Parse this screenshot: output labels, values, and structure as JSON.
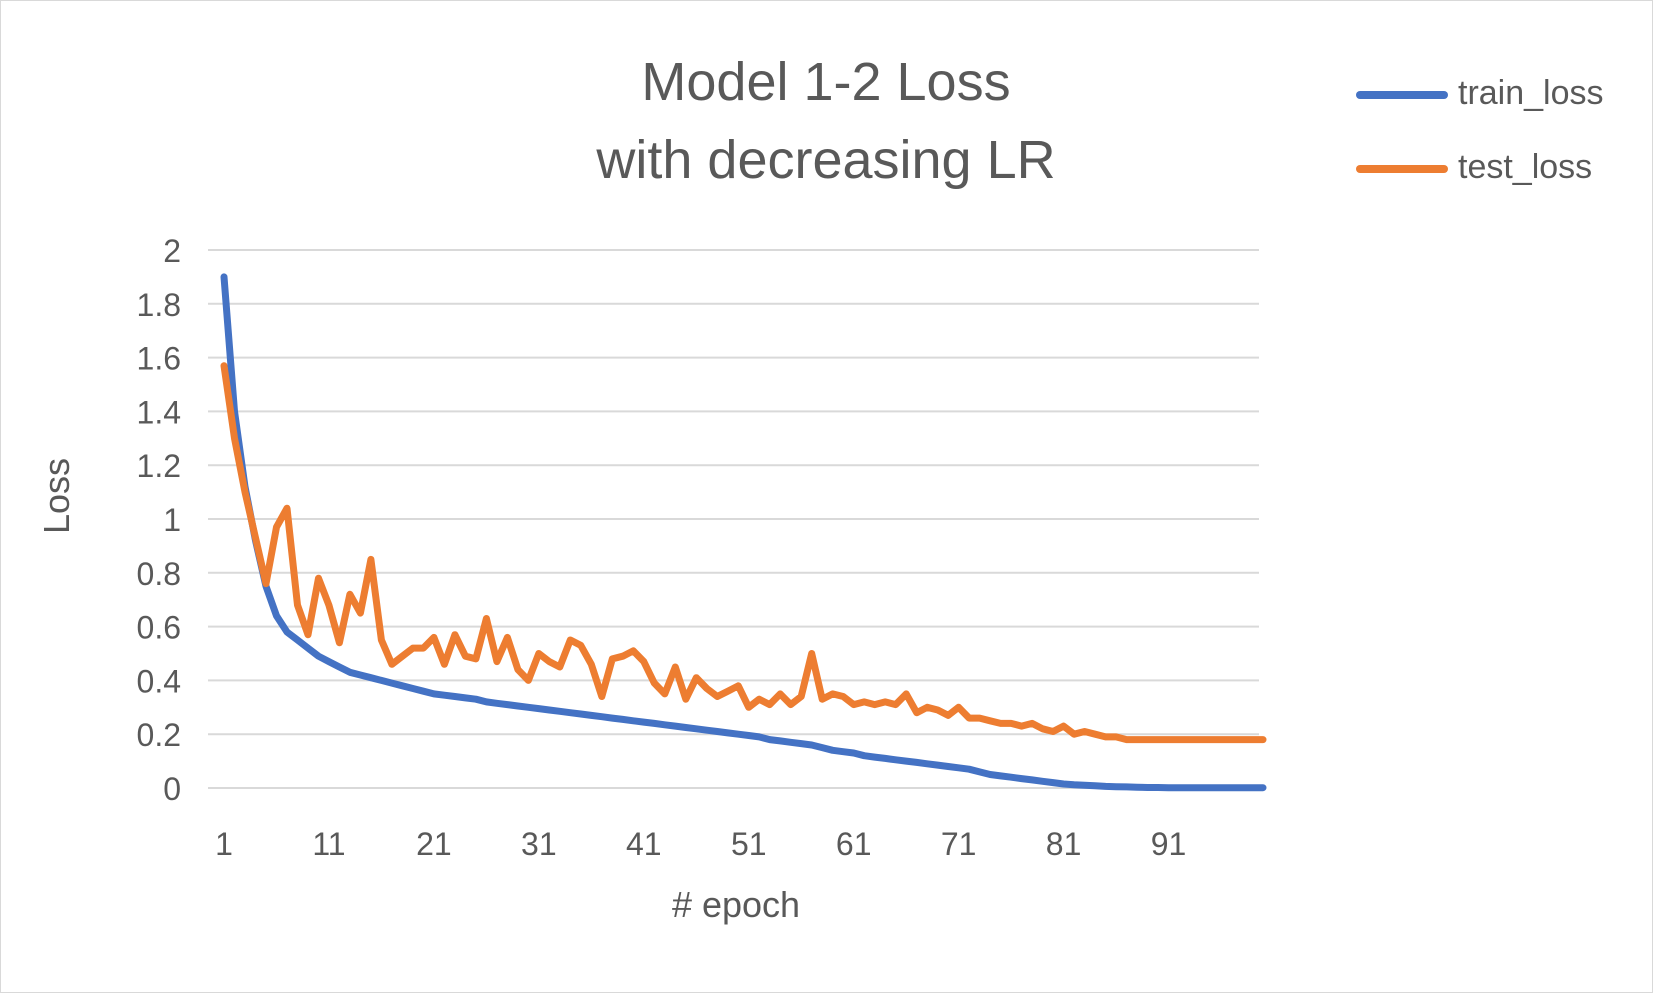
{
  "chart_data": {
    "type": "line",
    "title": [
      "Model 1-2 Loss",
      "with decreasing LR"
    ],
    "xlabel": "# epoch",
    "ylabel": "Loss",
    "x_range": [
      1,
      100
    ],
    "x_ticks": [
      1,
      11,
      21,
      31,
      41,
      51,
      61,
      71,
      81,
      91
    ],
    "ylim": [
      0,
      2
    ],
    "y_ticks": [
      0,
      0.2,
      0.4,
      0.6,
      0.8,
      1,
      1.2,
      1.4,
      1.6,
      1.8,
      2
    ],
    "y_tick_labels": [
      "0",
      "0.2",
      "0.4",
      "0.6",
      "0.8",
      "1",
      "1.2",
      "1.4",
      "1.6",
      "1.8",
      "2"
    ],
    "grid": "horizontal",
    "legend_position": "top-right",
    "series": [
      {
        "name": "train_loss",
        "color": "#4472c4",
        "values": [
          1.9,
          1.4,
          1.12,
          0.92,
          0.75,
          0.64,
          0.58,
          0.55,
          0.52,
          0.49,
          0.47,
          0.45,
          0.43,
          0.42,
          0.41,
          0.4,
          0.39,
          0.38,
          0.37,
          0.36,
          0.35,
          0.345,
          0.34,
          0.335,
          0.33,
          0.32,
          0.315,
          0.31,
          0.305,
          0.3,
          0.295,
          0.29,
          0.285,
          0.28,
          0.275,
          0.27,
          0.265,
          0.26,
          0.255,
          0.25,
          0.245,
          0.24,
          0.235,
          0.23,
          0.225,
          0.22,
          0.215,
          0.21,
          0.205,
          0.2,
          0.195,
          0.19,
          0.18,
          0.175,
          0.17,
          0.165,
          0.16,
          0.15,
          0.14,
          0.135,
          0.13,
          0.12,
          0.115,
          0.11,
          0.105,
          0.1,
          0.095,
          0.09,
          0.085,
          0.08,
          0.075,
          0.07,
          0.06,
          0.05,
          0.045,
          0.04,
          0.035,
          0.03,
          0.025,
          0.02,
          0.015,
          0.012,
          0.01,
          0.008,
          0.006,
          0.005,
          0.004,
          0.003,
          0.002,
          0.002,
          0.001,
          0.001,
          0.001,
          0.001,
          0.001,
          0.001,
          0.001,
          0.001,
          0.001,
          0.001
        ]
      },
      {
        "name": "test_loss",
        "color": "#ed7d31",
        "values": [
          1.57,
          1.3,
          1.1,
          0.93,
          0.76,
          0.97,
          1.04,
          0.68,
          0.57,
          0.78,
          0.68,
          0.54,
          0.72,
          0.65,
          0.85,
          0.55,
          0.46,
          0.49,
          0.52,
          0.52,
          0.56,
          0.46,
          0.57,
          0.49,
          0.48,
          0.63,
          0.47,
          0.56,
          0.44,
          0.4,
          0.5,
          0.47,
          0.45,
          0.55,
          0.53,
          0.46,
          0.34,
          0.48,
          0.49,
          0.51,
          0.47,
          0.39,
          0.35,
          0.45,
          0.33,
          0.41,
          0.37,
          0.34,
          0.36,
          0.38,
          0.3,
          0.33,
          0.31,
          0.35,
          0.31,
          0.34,
          0.5,
          0.33,
          0.35,
          0.34,
          0.31,
          0.32,
          0.31,
          0.32,
          0.31,
          0.35,
          0.28,
          0.3,
          0.29,
          0.27,
          0.3,
          0.26,
          0.26,
          0.25,
          0.24,
          0.24,
          0.23,
          0.24,
          0.22,
          0.21,
          0.23,
          0.2,
          0.21,
          0.2,
          0.19,
          0.19,
          0.18,
          0.18,
          0.18,
          0.18,
          0.18,
          0.18,
          0.18,
          0.18,
          0.18,
          0.18,
          0.18,
          0.18,
          0.18,
          0.18
        ]
      }
    ]
  }
}
